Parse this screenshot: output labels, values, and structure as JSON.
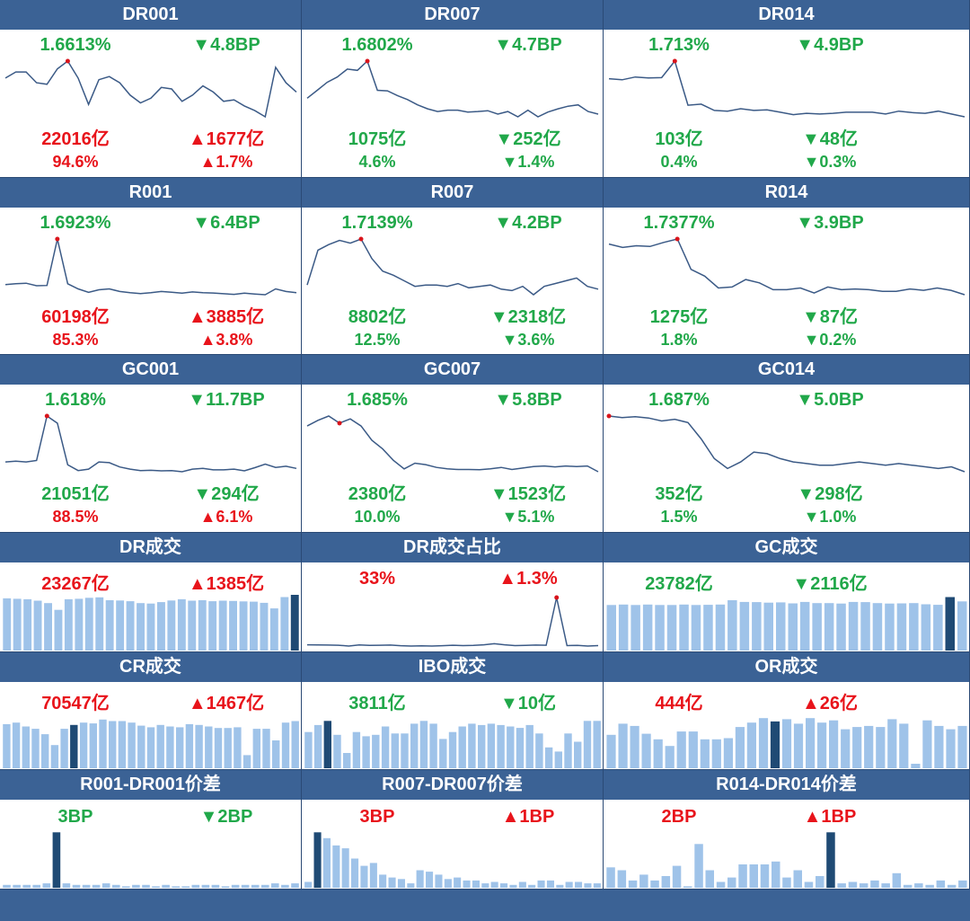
{
  "colors": {
    "header_bg": "#3b6295",
    "line": "#3b5a86",
    "bar": "#9fc3e9",
    "bar_highlight": "#1f4a74",
    "up": "#e8141b",
    "down": "#21a84a",
    "marker": "#d9141b"
  },
  "panels": [
    {
      "id": "dr001",
      "title": "DR001",
      "rate": "1.6613%",
      "rate_change": "▼4.8BP",
      "volume": "22016亿",
      "volume_change": "▲1677亿",
      "share": "94.6%",
      "share_change": "▲1.7%",
      "rate_color": "green",
      "rate_change_color": "green",
      "volume_color": "red",
      "volume_change_color": "red",
      "share_color": "red",
      "share_change_color": "red",
      "chart_data": {
        "type": "line",
        "values": [
          1.775,
          1.795,
          1.795,
          1.76,
          1.755,
          1.805,
          1.83,
          1.775,
          1.69,
          1.77,
          1.78,
          1.76,
          1.72,
          1.695,
          1.71,
          1.745,
          1.74,
          1.7,
          1.72,
          1.75,
          1.73,
          1.7,
          1.705,
          1.685,
          1.67,
          1.65,
          1.81,
          1.76,
          1.73
        ],
        "highlight_index": 6
      }
    },
    {
      "id": "dr007",
      "title": "DR007",
      "rate": "1.6802%",
      "rate_change": "▼4.7BP",
      "volume": "1075亿",
      "volume_change": "▼252亿",
      "share": "4.6%",
      "share_change": "▼1.4%",
      "rate_color": "green",
      "rate_change_color": "green",
      "volume_color": "green",
      "volume_change_color": "green",
      "share_color": "green",
      "share_change_color": "green",
      "chart_data": {
        "type": "line",
        "values": [
          1.74,
          1.77,
          1.8,
          1.82,
          1.85,
          1.845,
          1.88,
          1.77,
          1.768,
          1.75,
          1.735,
          1.715,
          1.7,
          1.69,
          1.695,
          1.695,
          1.688,
          1.69,
          1.693,
          1.68,
          1.69,
          1.67,
          1.695,
          1.67,
          1.688,
          1.7,
          1.71,
          1.715,
          1.69,
          1.68
        ],
        "highlight_index": 6
      }
    },
    {
      "id": "dr014",
      "title": "DR014",
      "rate": "1.713%",
      "rate_change": "▼4.9BP",
      "volume": "103亿",
      "volume_change": "▼48亿",
      "share": "0.4%",
      "share_change": "▼0.3%",
      "rate_color": "green",
      "rate_change_color": "green",
      "volume_color": "green",
      "volume_change_color": "green",
      "share_color": "green",
      "share_change_color": "green",
      "chart_data": {
        "type": "line",
        "values": [
          1.82,
          1.817,
          1.825,
          1.822,
          1.823,
          1.87,
          1.745,
          1.748,
          1.73,
          1.728,
          1.735,
          1.73,
          1.732,
          1.725,
          1.718,
          1.722,
          1.72,
          1.722,
          1.725,
          1.725,
          1.725,
          1.72,
          1.728,
          1.724,
          1.722,
          1.728,
          1.72,
          1.712
        ],
        "highlight_index": 5
      }
    },
    {
      "id": "r001",
      "title": "R001",
      "rate": "1.6923%",
      "rate_change": "▼6.4BP",
      "volume": "60198亿",
      "volume_change": "▲3885亿",
      "share": "85.3%",
      "share_change": "▲3.8%",
      "rate_color": "green",
      "rate_change_color": "green",
      "volume_color": "red",
      "volume_change_color": "red",
      "share_color": "red",
      "share_change_color": "red",
      "chart_data": {
        "type": "line",
        "values": [
          1.785,
          1.79,
          1.793,
          1.778,
          1.78,
          2.05,
          1.79,
          1.76,
          1.74,
          1.755,
          1.76,
          1.745,
          1.738,
          1.733,
          1.738,
          1.745,
          1.74,
          1.735,
          1.742,
          1.738,
          1.736,
          1.732,
          1.728,
          1.735,
          1.73,
          1.726,
          1.76,
          1.745,
          1.738
        ],
        "highlight_index": 5
      }
    },
    {
      "id": "r007",
      "title": "R007",
      "rate": "1.7139%",
      "rate_change": "▼4.2BP",
      "volume": "8802亿",
      "volume_change": "▼2318亿",
      "share": "12.5%",
      "share_change": "▼3.6%",
      "rate_color": "green",
      "rate_change_color": "green",
      "volume_color": "green",
      "volume_change_color": "green",
      "share_color": "green",
      "share_change_color": "green",
      "chart_data": {
        "type": "line",
        "values": [
          1.775,
          1.9,
          1.92,
          1.935,
          1.925,
          1.94,
          1.87,
          1.825,
          1.81,
          1.79,
          1.77,
          1.775,
          1.775,
          1.77,
          1.78,
          1.765,
          1.77,
          1.775,
          1.76,
          1.755,
          1.77,
          1.74,
          1.77,
          1.78,
          1.79,
          1.8,
          1.77,
          1.76
        ],
        "highlight_index": 5
      }
    },
    {
      "id": "r014",
      "title": "R014",
      "rate": "1.7377%",
      "rate_change": "▼3.9BP",
      "volume": "1275亿",
      "volume_change": "▼87亿",
      "share": "1.8%",
      "share_change": "▼0.2%",
      "rate_color": "green",
      "rate_change_color": "green",
      "volume_color": "green",
      "volume_change_color": "green",
      "share_color": "green",
      "share_change_color": "green",
      "chart_data": {
        "type": "line",
        "values": [
          1.875,
          1.865,
          1.87,
          1.868,
          1.88,
          1.89,
          1.8,
          1.78,
          1.745,
          1.748,
          1.77,
          1.76,
          1.74,
          1.74,
          1.745,
          1.73,
          1.748,
          1.74,
          1.742,
          1.74,
          1.735,
          1.735,
          1.742,
          1.738,
          1.745,
          1.738,
          1.725
        ],
        "highlight_index": 5
      }
    },
    {
      "id": "gc001",
      "title": "GC001",
      "rate": "1.618%",
      "rate_change": "▼11.7BP",
      "volume": "21051亿",
      "volume_change": "▼294亿",
      "share": "88.5%",
      "share_change": "▲6.1%",
      "rate_color": "green",
      "rate_change_color": "green",
      "volume_color": "green",
      "volume_change_color": "green",
      "share_color": "red",
      "share_change_color": "red",
      "chart_data": {
        "type": "line",
        "values": [
          1.78,
          1.785,
          1.78,
          1.79,
          2.1,
          2.05,
          1.76,
          1.72,
          1.73,
          1.78,
          1.775,
          1.745,
          1.73,
          1.72,
          1.722,
          1.718,
          1.72,
          1.712,
          1.73,
          1.735,
          1.725,
          1.725,
          1.73,
          1.718,
          1.74,
          1.765,
          1.742,
          1.75,
          1.735
        ],
        "highlight_index": 4
      }
    },
    {
      "id": "gc007",
      "title": "GC007",
      "rate": "1.685%",
      "rate_change": "▼5.8BP",
      "volume": "2380亿",
      "volume_change": "▼1523亿",
      "share": "10.0%",
      "share_change": "▼5.1%",
      "rate_color": "green",
      "rate_change_color": "green",
      "volume_color": "green",
      "volume_change_color": "green",
      "share_color": "green",
      "share_change_color": "green",
      "chart_data": {
        "type": "line",
        "values": [
          1.88,
          1.9,
          1.915,
          1.89,
          1.905,
          1.88,
          1.83,
          1.8,
          1.76,
          1.73,
          1.75,
          1.745,
          1.735,
          1.73,
          1.728,
          1.728,
          1.727,
          1.73,
          1.735,
          1.728,
          1.733,
          1.738,
          1.74,
          1.737,
          1.74,
          1.738,
          1.74,
          1.72
        ],
        "highlight_index": 3
      }
    },
    {
      "id": "gc014",
      "title": "GC014",
      "rate": "1.687%",
      "rate_change": "▼5.0BP",
      "volume": "352亿",
      "volume_change": "▼298亿",
      "share": "1.5%",
      "share_change": "▼1.0%",
      "rate_color": "green",
      "rate_change_color": "green",
      "volume_color": "green",
      "volume_change_color": "green",
      "share_color": "green",
      "share_change_color": "green",
      "chart_data": {
        "type": "line",
        "values": [
          1.95,
          1.945,
          1.948,
          1.944,
          1.935,
          1.94,
          1.93,
          1.88,
          1.82,
          1.79,
          1.81,
          1.84,
          1.835,
          1.82,
          1.81,
          1.805,
          1.8,
          1.8,
          1.805,
          1.81,
          1.805,
          1.8,
          1.805,
          1.8,
          1.795,
          1.79,
          1.795,
          1.78
        ],
        "highlight_index": 0
      }
    }
  ],
  "volume_panels": [
    {
      "id": "dr_volume",
      "title": "DR成交",
      "left_text": "23267亿",
      "right_text": "▲1385亿",
      "left_color": "red",
      "right_color": "red",
      "chart_data": {
        "type": "bar",
        "values": [
          21800,
          21600,
          21400,
          20800,
          19800,
          17000,
          21400,
          21600,
          22000,
          22200,
          21000,
          20900,
          20600,
          19800,
          19600,
          20200,
          20900,
          21400,
          20800,
          21000,
          20600,
          20800,
          20700,
          20500,
          20400,
          19900,
          17600,
          22300,
          23267
        ],
        "highlight_index": 28,
        "ylim": [
          0,
          24000
        ]
      }
    },
    {
      "id": "dr_share",
      "title": "DR成交占比",
      "left_text": "33%",
      "right_text": "▲1.3%",
      "left_color": "red",
      "right_color": "red",
      "chart_data": {
        "type": "line",
        "values": [
          1.8,
          1.7,
          1.6,
          1.5,
          1.0,
          1.7,
          1.4,
          1.5,
          1.6,
          1.2,
          1.0,
          1.1,
          1.0,
          1.2,
          1.5,
          1.3,
          1.4,
          1.8,
          2.5,
          1.8,
          1.3,
          1.4,
          1.6,
          1.5,
          31.7,
          1.3,
          1.4,
          1.0,
          1.3
        ],
        "highlight_index": 24
      }
    },
    {
      "id": "gc_volume",
      "title": "GC成交",
      "left_text": "23782亿",
      "right_text": "▼2116亿",
      "left_color": "green",
      "right_color": "green",
      "chart_data": {
        "type": "bar",
        "values": [
          19000,
          19200,
          19000,
          19200,
          19000,
          19000,
          19200,
          19000,
          19100,
          19200,
          21000,
          20300,
          20200,
          20000,
          20100,
          19700,
          20300,
          19800,
          19800,
          19600,
          20300,
          20200,
          19800,
          19600,
          19700,
          19800,
          19300,
          19100,
          22300,
          20500
        ],
        "highlight_index": 28,
        "ylim": [
          0,
          24000
        ]
      }
    },
    {
      "id": "cr_volume",
      "title": "CR成交",
      "left_text": "70547亿",
      "right_text": "▲1467亿",
      "left_color": "red",
      "right_color": "red",
      "chart_data": {
        "type": "bar",
        "values": [
          57000,
          59000,
          54000,
          51000,
          44000,
          30000,
          51000,
          56000,
          59000,
          58000,
          63000,
          61000,
          61000,
          59000,
          55000,
          53000,
          56000,
          54000,
          53000,
          57000,
          56000,
          54000,
          52000,
          52000,
          53000,
          17000,
          51000,
          51000,
          36000,
          59000,
          61000
        ],
        "highlight_index": 7,
        "ylim": [
          0,
          72000
        ]
      }
    },
    {
      "id": "ibo_volume",
      "title": "IBO成交",
      "left_text": "3811亿",
      "right_text": "▼10亿",
      "left_color": "green",
      "right_color": "green",
      "chart_data": {
        "type": "bar",
        "values": [
          2600,
          3100,
          3400,
          2400,
          1100,
          2600,
          2300,
          2400,
          3000,
          2500,
          2500,
          3200,
          3400,
          3200,
          2100,
          2600,
          3000,
          3200,
          3100,
          3200,
          3100,
          3000,
          2900,
          3100,
          2500,
          1500,
          1200,
          2500,
          1900,
          3400,
          3400
        ],
        "highlight_index": 2,
        "ylim": [
          0,
          4000
        ]
      }
    },
    {
      "id": "or_volume",
      "title": "OR成交",
      "left_text": "444亿",
      "right_text": "▲26亿",
      "left_color": "red",
      "right_color": "red",
      "chart_data": {
        "type": "bar",
        "values": [
          300,
          400,
          380,
          310,
          260,
          200,
          330,
          330,
          260,
          260,
          270,
          370,
          410,
          450,
          420,
          440,
          400,
          450,
          410,
          430,
          350,
          370,
          380,
          370,
          440,
          400,
          40,
          430,
          380,
          350,
          380
        ],
        "highlight_index": 14,
        "ylim": [
          0,
          500
        ]
      }
    }
  ],
  "spread_panels": [
    {
      "id": "r001_dr001",
      "title": "R001-DR001价差",
      "left_text": "3BP",
      "right_text": "▼2BP",
      "left_color": "green",
      "right_color": "green",
      "chart_data": {
        "type": "bar",
        "values": [
          2,
          2,
          2,
          2,
          3,
          38,
          3,
          2,
          2,
          2,
          3,
          2,
          1,
          2,
          2,
          1,
          2,
          1,
          1,
          2,
          2,
          2,
          1,
          2,
          2,
          2,
          2,
          3,
          2,
          3
        ],
        "highlight_index": 5,
        "ylim": [
          0,
          40
        ]
      }
    },
    {
      "id": "r007_dr007",
      "title": "R007-DR007价差",
      "left_text": "3BP",
      "right_text": "▲1BP",
      "left_color": "red",
      "right_color": "red",
      "chart_data": {
        "type": "bar",
        "values": [
          4,
          38,
          34,
          29,
          27,
          20,
          15,
          17,
          9,
          7,
          6,
          3,
          12,
          11,
          9,
          6,
          7,
          5,
          5,
          3,
          4,
          3,
          2,
          4,
          2,
          5,
          5,
          2,
          4,
          4,
          3,
          3
        ],
        "highlight_index": 1,
        "ylim": [
          0,
          40
        ]
      }
    },
    {
      "id": "r014_dr014",
      "title": "R014-DR014价差",
      "left_text": "2BP",
      "right_text": "▲1BP",
      "left_color": "red",
      "right_color": "red",
      "chart_data": {
        "type": "bar",
        "values": [
          14,
          12,
          5,
          9,
          5,
          8,
          15,
          1,
          30,
          12,
          4,
          7,
          16,
          16,
          16,
          18,
          7,
          12,
          4,
          8,
          38,
          3,
          4,
          3,
          5,
          3,
          10,
          2,
          3,
          2,
          5,
          2,
          5
        ],
        "highlight_index": 20,
        "ylim": [
          0,
          40
        ]
      }
    }
  ]
}
